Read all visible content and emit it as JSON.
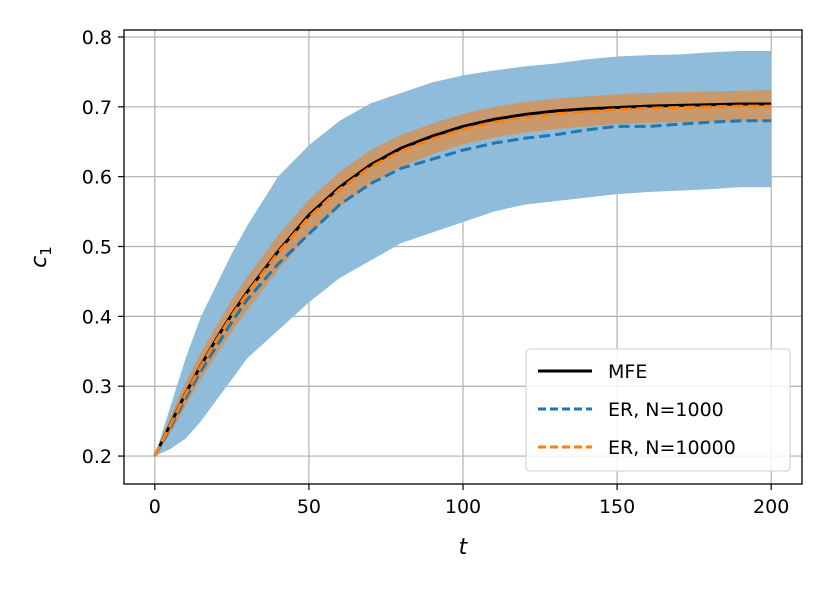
{
  "chart_data": {
    "type": "line",
    "xlabel": "t",
    "ylabel_main": "c",
    "ylabel_sub": "1",
    "xlim": [
      -10,
      210
    ],
    "ylim": [
      0.16,
      0.81
    ],
    "xticks": [
      0,
      50,
      100,
      150,
      200
    ],
    "xtick_labels": [
      "0",
      "50",
      "100",
      "150",
      "200"
    ],
    "yticks": [
      0.2,
      0.3,
      0.4,
      0.5,
      0.6,
      0.7,
      0.8
    ],
    "ytick_labels": [
      "0.2",
      "0.3",
      "0.4",
      "0.5",
      "0.6",
      "0.7",
      "0.8"
    ],
    "grid": true,
    "legend_position": "lower-right",
    "colors": {
      "mfe": "#000000",
      "er1000": "#1f77b4",
      "er10000": "#ff7f0e",
      "band_wide": "#8fbcdb",
      "band_narrow": "#c9996b",
      "grid": "#b0b0b0"
    },
    "x": [
      0,
      5,
      10,
      15,
      20,
      25,
      30,
      40,
      50,
      60,
      70,
      80,
      90,
      100,
      110,
      120,
      130,
      140,
      150,
      160,
      170,
      180,
      190,
      200
    ],
    "series": [
      {
        "name": "MFE",
        "style": "solid",
        "values": [
          0.2,
          0.245,
          0.29,
          0.33,
          0.368,
          0.403,
          0.435,
          0.493,
          0.545,
          0.585,
          0.617,
          0.641,
          0.658,
          0.672,
          0.682,
          0.689,
          0.694,
          0.697,
          0.699,
          0.701,
          0.702,
          0.703,
          0.704,
          0.704
        ]
      },
      {
        "name": "ER, N=1000",
        "style": "dashed",
        "values": [
          0.2,
          0.24,
          0.283,
          0.322,
          0.357,
          0.392,
          0.424,
          0.475,
          0.518,
          0.56,
          0.59,
          0.612,
          0.625,
          0.638,
          0.648,
          0.655,
          0.66,
          0.667,
          0.672,
          0.672,
          0.675,
          0.678,
          0.68,
          0.68
        ],
        "band_low": [
          0.2,
          0.21,
          0.225,
          0.25,
          0.28,
          0.31,
          0.34,
          0.38,
          0.42,
          0.455,
          0.48,
          0.505,
          0.52,
          0.535,
          0.55,
          0.56,
          0.565,
          0.57,
          0.575,
          0.578,
          0.58,
          0.582,
          0.585,
          0.585
        ],
        "band_high": [
          0.2,
          0.27,
          0.34,
          0.4,
          0.445,
          0.49,
          0.53,
          0.6,
          0.645,
          0.68,
          0.705,
          0.72,
          0.735,
          0.745,
          0.752,
          0.758,
          0.762,
          0.768,
          0.772,
          0.774,
          0.775,
          0.778,
          0.78,
          0.78
        ]
      },
      {
        "name": "ER, N=10000",
        "style": "dashed",
        "values": [
          0.2,
          0.244,
          0.289,
          0.329,
          0.366,
          0.401,
          0.433,
          0.491,
          0.542,
          0.582,
          0.614,
          0.637,
          0.654,
          0.668,
          0.678,
          0.685,
          0.69,
          0.693,
          0.696,
          0.698,
          0.699,
          0.7,
          0.701,
          0.701
        ],
        "band_low": [
          0.2,
          0.232,
          0.272,
          0.31,
          0.345,
          0.378,
          0.409,
          0.466,
          0.517,
          0.557,
          0.59,
          0.614,
          0.632,
          0.646,
          0.656,
          0.663,
          0.668,
          0.672,
          0.675,
          0.677,
          0.678,
          0.679,
          0.68,
          0.68
        ],
        "band_high": [
          0.2,
          0.256,
          0.306,
          0.348,
          0.387,
          0.424,
          0.457,
          0.516,
          0.567,
          0.607,
          0.638,
          0.66,
          0.676,
          0.69,
          0.7,
          0.707,
          0.712,
          0.715,
          0.718,
          0.72,
          0.721,
          0.722,
          0.723,
          0.724
        ]
      }
    ]
  }
}
